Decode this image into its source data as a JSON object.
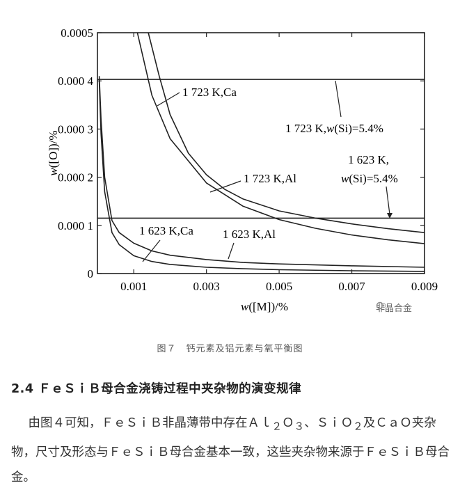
{
  "chart_data": {
    "type": "line",
    "xlabel_parts": {
      "italic": "w",
      "rest": "([M])/%"
    },
    "ylabel_parts": {
      "italic": "w",
      "rest": "([O])/%"
    },
    "xlim": [
      0,
      0.009
    ],
    "ylim": [
      0,
      0.0005
    ],
    "x_ticks": [
      0.001,
      0.003,
      0.005,
      0.007,
      0.009
    ],
    "x_tick_labels": [
      "0.001",
      "0.003",
      "0.005",
      "0.007",
      "0.009"
    ],
    "y_ticks": [
      0,
      0.0001,
      0.0002,
      0.0003,
      0.0004,
      0.0005
    ],
    "y_tick_labels": [
      "0",
      "0.000 1",
      "0.000 2",
      "0.000 3",
      "0.000 4",
      "0.0005"
    ],
    "grid": false,
    "series": [
      {
        "name": "1 723 K,Ca",
        "x": [
          0.0011,
          0.0015,
          0.002,
          0.003,
          0.004,
          0.005,
          0.006,
          0.007,
          0.008,
          0.009
        ],
        "y": [
          0.0005,
          0.00037,
          0.00028,
          0.000188,
          0.00014,
          0.000112,
          9.4e-05,
          8e-05,
          7e-05,
          6.2e-05
        ]
      },
      {
        "name": "1 723 K,Al",
        "x": [
          0.0014,
          0.0017,
          0.002,
          0.0025,
          0.003,
          0.0035,
          0.004,
          0.005,
          0.006,
          0.007,
          0.008,
          0.009
        ],
        "y": [
          0.0005,
          0.00041,
          0.00033,
          0.00025,
          0.000205,
          0.000175,
          0.000155,
          0.00013,
          0.000115,
          0.000103,
          9.3e-05,
          8.5e-05
        ]
      },
      {
        "name": "1 623 K,Ca",
        "x": [
          5e-05,
          0.0001,
          0.0002,
          0.0004,
          0.0006,
          0.001,
          0.0015,
          0.002,
          0.003,
          0.004,
          0.005,
          0.007,
          0.009
        ],
        "y": [
          0.0004,
          0.00029,
          0.00017,
          8.5e-05,
          6e-05,
          3.7e-05,
          2.5e-05,
          1.9e-05,
          1.3e-05,
          1e-05,
          8e-06,
          5.8e-06,
          4.5e-06
        ]
      },
      {
        "name": "1 623 K,Al",
        "x": [
          5e-05,
          0.0001,
          0.0002,
          0.0004,
          0.0006,
          0.001,
          0.0015,
          0.002,
          0.003,
          0.004,
          0.005,
          0.007,
          0.009
        ],
        "y": [
          0.00041,
          0.00032,
          0.0002,
          0.00011,
          8.5e-05,
          6.3e-05,
          4.7e-05,
          3.8e-05,
          2.9e-05,
          2.3e-05,
          2e-05,
          1.6e-05,
          1.3e-05
        ]
      },
      {
        "name": "1 723 K,w(Si)=5.4%",
        "x": [
          0,
          0.009
        ],
        "y": [
          0.000403,
          0.000403
        ]
      },
      {
        "name": "1 623 K, w(Si)=5.4%",
        "x": [
          0,
          0.009
        ],
        "y": [
          0.000115,
          0.000115
        ]
      }
    ],
    "annotations": {
      "ca1723": "1 723 K,Ca",
      "al1723": "1 723 K,Al",
      "ca1623": "1 623 K,Ca",
      "al1623": "1 623 K,Al",
      "si1723_pre": "1 723 K,",
      "si1723_w": "w",
      "si1723_post": "(Si)=5.4%",
      "si1623_l1": "1 623 K,",
      "si1623_w": "w",
      "si1623_post": "(Si)=5.4%"
    }
  },
  "watermark": {
    "text": "非晶合金",
    "icon": "brand-swirl-icon"
  },
  "figure_caption": "图７　钙元素及铝元素与氧平衡图",
  "section": {
    "number": "2.4",
    "title_latin": "ＦｅＳｉＢ",
    "title_rest": "母合金浇铸过程中夹杂物的演变规律"
  },
  "body": {
    "p1_a": "由图",
    "p1_fig": "４",
    "p1_b": "可知，ＦｅＳｉＢ非晶薄带中存在Ａｌ",
    "p1_sub1": "２",
    "p1_c": "Ｏ",
    "p1_sub2": "３",
    "p1_d": "、ＳｉＯ",
    "p1_sub3": "２",
    "p1_e": "及ＣａＯ夹杂物，尺寸及形态与ＦｅＳｉＢ母合金基本一致，这些夹杂物来源于ＦｅＳｉＢ母合金。"
  }
}
